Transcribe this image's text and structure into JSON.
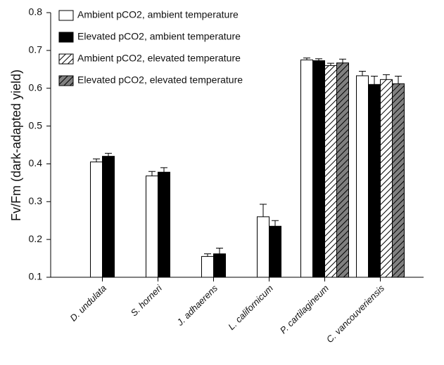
{
  "chart_data": {
    "type": "bar",
    "ylabel": "Fv/Fm (dark-adapted yield)",
    "categories": [
      "D. undulata",
      "S. horneri",
      "J. adhaerens",
      "L. californicum",
      "P. cartilagineum",
      "C. vancouveriensis"
    ],
    "series": [
      {
        "name": "Ambient pCO2, ambient temperature",
        "color": "#ffffff",
        "hatch": false,
        "values": [
          0.405,
          0.368,
          0.155,
          0.26,
          0.675,
          0.633
        ],
        "errors": [
          0.008,
          0.012,
          0.007,
          0.033,
          0.005,
          0.012
        ]
      },
      {
        "name": "Elevated pCO2, ambient temperature",
        "color": "#000000",
        "hatch": false,
        "values": [
          0.42,
          0.378,
          0.162,
          0.235,
          0.673,
          0.61
        ],
        "errors": [
          0.008,
          0.012,
          0.015,
          0.015,
          0.005,
          0.022
        ]
      },
      {
        "name": "Ambient pCO2, elevated temperature",
        "color": "#ffffff",
        "hatch": true,
        "values": [
          null,
          null,
          null,
          null,
          0.66,
          0.623
        ],
        "errors": [
          null,
          null,
          null,
          null,
          0.006,
          0.013
        ]
      },
      {
        "name": "Elevated pCO2, elevated temperature",
        "color": "#808080",
        "hatch": true,
        "values": [
          null,
          null,
          null,
          null,
          0.667,
          0.612
        ],
        "errors": [
          null,
          null,
          null,
          null,
          0.01,
          0.02
        ]
      }
    ],
    "ylim": [
      0.1,
      0.8
    ],
    "yticks": [
      0.1,
      0.2,
      0.3,
      0.4,
      0.5,
      0.6,
      0.7,
      0.8
    ]
  }
}
